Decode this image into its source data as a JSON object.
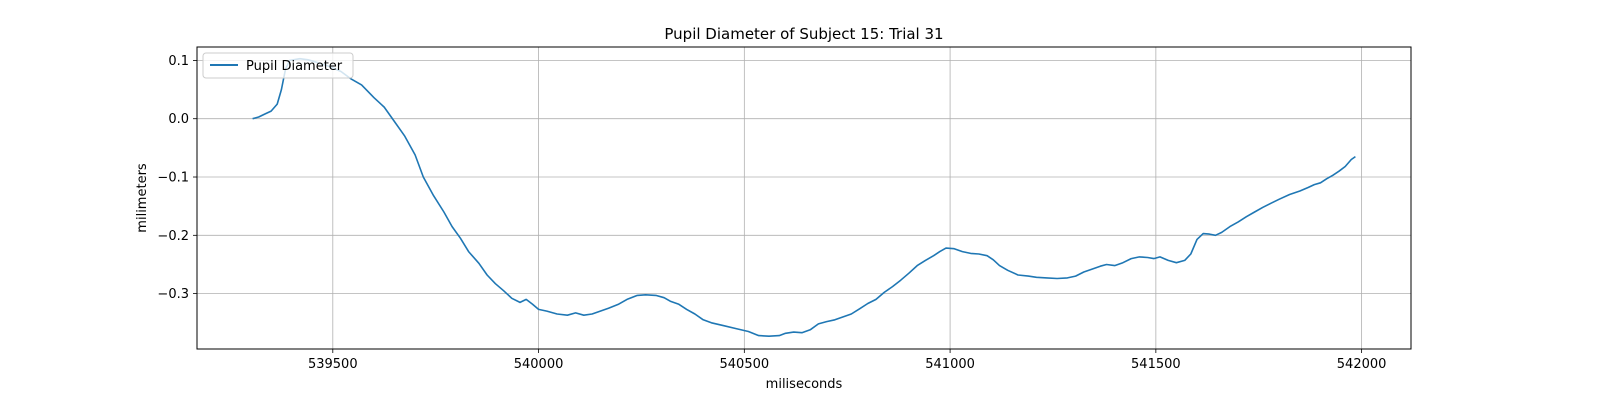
{
  "chart_data": {
    "type": "line",
    "title": "Pupil Diameter of Subject 15: Trial 31",
    "xlabel": "miliseconds",
    "ylabel": "milimeters",
    "xlim": [
      539170,
      542120
    ],
    "ylim": [
      -0.395,
      0.123
    ],
    "xticks": [
      539500,
      540000,
      540500,
      541000,
      541500,
      542000
    ],
    "yticks": [
      0.1,
      0.0,
      -0.1,
      -0.2,
      -0.3
    ],
    "ytick_labels": [
      "0.1",
      "0.0",
      "−0.1",
      "−0.2",
      "−0.3"
    ],
    "grid": true,
    "legend_position": "top-left",
    "colors": {
      "series": "#1f77b4",
      "grid": "#b0b0b0",
      "axes": "#000000"
    },
    "series": [
      {
        "name": "Pupil Diameter",
        "points": [
          [
            539305,
            0.0
          ],
          [
            539320,
            0.003
          ],
          [
            539335,
            0.008
          ],
          [
            539350,
            0.013
          ],
          [
            539365,
            0.025
          ],
          [
            539375,
            0.05
          ],
          [
            539385,
            0.085
          ],
          [
            539395,
            0.1
          ],
          [
            539420,
            0.103
          ],
          [
            539440,
            0.101
          ],
          [
            539460,
            0.097
          ],
          [
            539490,
            0.09
          ],
          [
            539520,
            0.081
          ],
          [
            539545,
            0.068
          ],
          [
            539570,
            0.058
          ],
          [
            539600,
            0.036
          ],
          [
            539625,
            0.02
          ],
          [
            539650,
            -0.005
          ],
          [
            539675,
            -0.03
          ],
          [
            539700,
            -0.062
          ],
          [
            539720,
            -0.1
          ],
          [
            539745,
            -0.132
          ],
          [
            539770,
            -0.16
          ],
          [
            539790,
            -0.185
          ],
          [
            539810,
            -0.205
          ],
          [
            539830,
            -0.228
          ],
          [
            539855,
            -0.248
          ],
          [
            539875,
            -0.268
          ],
          [
            539895,
            -0.283
          ],
          [
            539915,
            -0.295
          ],
          [
            539935,
            -0.308
          ],
          [
            539955,
            -0.315
          ],
          [
            539970,
            -0.31
          ],
          [
            539985,
            -0.318
          ],
          [
            540000,
            -0.327
          ],
          [
            540020,
            -0.33
          ],
          [
            540045,
            -0.335
          ],
          [
            540070,
            -0.337
          ],
          [
            540090,
            -0.333
          ],
          [
            540110,
            -0.337
          ],
          [
            540130,
            -0.335
          ],
          [
            540150,
            -0.33
          ],
          [
            540170,
            -0.325
          ],
          [
            540195,
            -0.318
          ],
          [
            540215,
            -0.31
          ],
          [
            540240,
            -0.303
          ],
          [
            540260,
            -0.302
          ],
          [
            540285,
            -0.303
          ],
          [
            540305,
            -0.307
          ],
          [
            540320,
            -0.313
          ],
          [
            540340,
            -0.318
          ],
          [
            540360,
            -0.327
          ],
          [
            540380,
            -0.335
          ],
          [
            540400,
            -0.345
          ],
          [
            540420,
            -0.35
          ],
          [
            540450,
            -0.355
          ],
          [
            540480,
            -0.36
          ],
          [
            540510,
            -0.365
          ],
          [
            540535,
            -0.372
          ],
          [
            540560,
            -0.373
          ],
          [
            540585,
            -0.372
          ],
          [
            540600,
            -0.368
          ],
          [
            540620,
            -0.366
          ],
          [
            540640,
            -0.367
          ],
          [
            540660,
            -0.362
          ],
          [
            540680,
            -0.352
          ],
          [
            540700,
            -0.348
          ],
          [
            540720,
            -0.345
          ],
          [
            540740,
            -0.34
          ],
          [
            540760,
            -0.335
          ],
          [
            540780,
            -0.326
          ],
          [
            540800,
            -0.317
          ],
          [
            540820,
            -0.31
          ],
          [
            540840,
            -0.298
          ],
          [
            540860,
            -0.288
          ],
          [
            540880,
            -0.277
          ],
          [
            540900,
            -0.265
          ],
          [
            540920,
            -0.252
          ],
          [
            540940,
            -0.243
          ],
          [
            540960,
            -0.235
          ],
          [
            540975,
            -0.228
          ],
          [
            540990,
            -0.222
          ],
          [
            541010,
            -0.223
          ],
          [
            541030,
            -0.228
          ],
          [
            541050,
            -0.231
          ],
          [
            541070,
            -0.232
          ],
          [
            541090,
            -0.235
          ],
          [
            541105,
            -0.242
          ],
          [
            541120,
            -0.252
          ],
          [
            541140,
            -0.26
          ],
          [
            541165,
            -0.268
          ],
          [
            541190,
            -0.27
          ],
          [
            541210,
            -0.272
          ],
          [
            541235,
            -0.273
          ],
          [
            541260,
            -0.274
          ],
          [
            541285,
            -0.273
          ],
          [
            541305,
            -0.27
          ],
          [
            541325,
            -0.263
          ],
          [
            541345,
            -0.258
          ],
          [
            541365,
            -0.253
          ],
          [
            541380,
            -0.25
          ],
          [
            541400,
            -0.252
          ],
          [
            541420,
            -0.247
          ],
          [
            541440,
            -0.24
          ],
          [
            541460,
            -0.237
          ],
          [
            541480,
            -0.238
          ],
          [
            541495,
            -0.24
          ],
          [
            541510,
            -0.237
          ],
          [
            541530,
            -0.243
          ],
          [
            541550,
            -0.247
          ],
          [
            541570,
            -0.243
          ],
          [
            541585,
            -0.232
          ],
          [
            541600,
            -0.207
          ],
          [
            541615,
            -0.197
          ],
          [
            541630,
            -0.198
          ],
          [
            541645,
            -0.2
          ],
          [
            541660,
            -0.195
          ],
          [
            541680,
            -0.185
          ],
          [
            541700,
            -0.177
          ],
          [
            541720,
            -0.168
          ],
          [
            541740,
            -0.16
          ],
          [
            541760,
            -0.152
          ],
          [
            541780,
            -0.145
          ],
          [
            541800,
            -0.138
          ],
          [
            541825,
            -0.13
          ],
          [
            541850,
            -0.124
          ],
          [
            541870,
            -0.118
          ],
          [
            541885,
            -0.113
          ],
          [
            541900,
            -0.11
          ],
          [
            541915,
            -0.103
          ],
          [
            541930,
            -0.097
          ],
          [
            541945,
            -0.09
          ],
          [
            541960,
            -0.082
          ],
          [
            541975,
            -0.07
          ],
          [
            541985,
            -0.065
          ]
        ]
      }
    ]
  }
}
